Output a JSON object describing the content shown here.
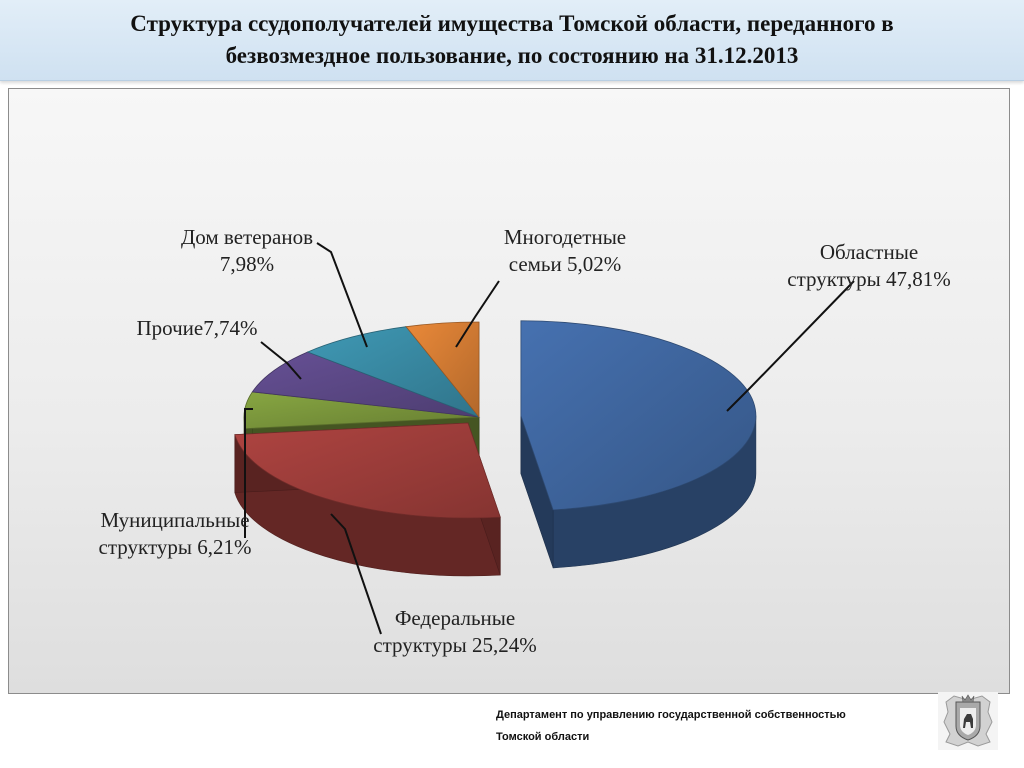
{
  "header": {
    "title_line1": "Структура ссудополучателей имущества Томской области, переданного в",
    "title_line2": "безвозмездное пользование, по состоянию на 31.12.2013"
  },
  "chart_data": {
    "type": "pie",
    "title": "",
    "unit": "%",
    "slices": [
      {
        "name": "Областные структуры",
        "value": 47.81,
        "label_line1": "Областные",
        "label_line2": "структуры 47,81%",
        "color": "#4169a3"
      },
      {
        "name": "Федеральные структуры",
        "value": 25.24,
        "label_line1": "Федеральные",
        "label_line2": "структуры 25,24%",
        "color": "#a23f3c"
      },
      {
        "name": "Муниципальные структуры",
        "value": 6.21,
        "label_line1": "Муниципальные",
        "label_line2": "структуры 6,21%",
        "color": "#7d9a3d"
      },
      {
        "name": "Прочие",
        "value": 7.74,
        "label_line1": "Прочие7,74%",
        "label_line2": "",
        "color": "#5e4a8a"
      },
      {
        "name": "Дом ветеранов",
        "value": 7.98,
        "label_line1": "Дом ветеранов",
        "label_line2": "7,98%",
        "color": "#3a8ea8"
      },
      {
        "name": "Многодетные семьи",
        "value": 5.02,
        "label_line1": "Многодетные",
        "label_line2": "семьи 5,02%",
        "color": "#d97f35"
      }
    ]
  },
  "footer": {
    "line1": "Департамент по управлению государственной собственностью",
    "line2": "Томской области"
  }
}
